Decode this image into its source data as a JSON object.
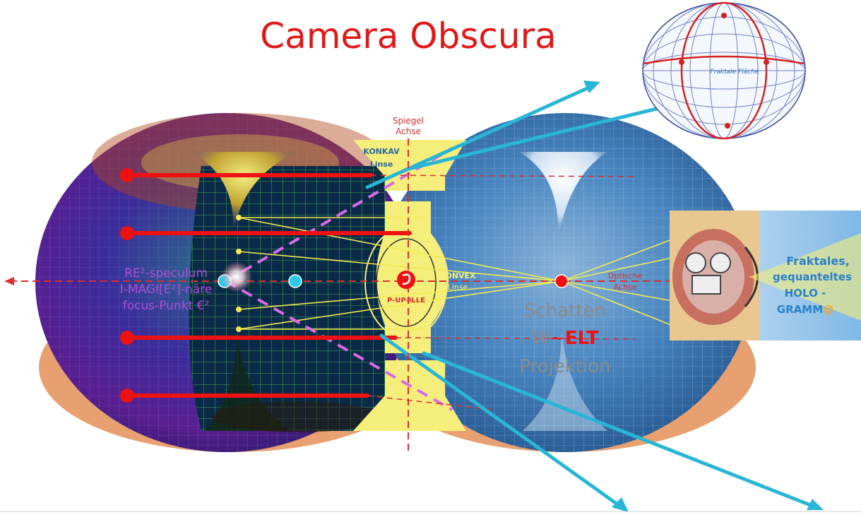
{
  "title": "Camera Obscura",
  "labels": {
    "spiegel_achse_line1": "Spiegel",
    "spiegel_achse_line2": "Achse",
    "konkav_line1": "KONKAV",
    "konkav_line2": "Linse",
    "konvex_line1": "KONVEX",
    "konvex_line2": "Linse",
    "pupille": "P-UP-ILLE",
    "optische_line1": "Optische",
    "optische_line2": "Achse",
    "speculum_line1": "RE²-speculum",
    "speculum_line2": "I-MAGI[E²]-näre",
    "speculum_line3": "focus-Punkt €²",
    "schatten": "Schatten",
    "welt_prefix": "W",
    "welt_tilde": "~",
    "welt_suffix": "ELT",
    "projektion": "Projektion",
    "fraktale_flaeche": "Fraktale Fläche",
    "holo_line1": "Fraktales,",
    "holo_line2": "gequanteltes",
    "holo_line3": "HOLO -",
    "holo_line4_main": "GRAMM",
    "holo_line4_at": "@"
  },
  "colors": {
    "title": "#e01818",
    "red_ray": "#ee1111",
    "yellow_lens": "#f6ee7a",
    "cyan_arrow": "#28b6d6",
    "magenta_dash": "#d86ae8",
    "purple_text": "#b04cd8",
    "axis_red": "#d63030",
    "schatten_gray": "#8a8a8a",
    "holo_blue": "#2a80c8",
    "holo_orange": "#f0a020",
    "left_torus": "#4a2aa0",
    "right_torus": "#3a78b8",
    "peach": "#e8a070"
  }
}
